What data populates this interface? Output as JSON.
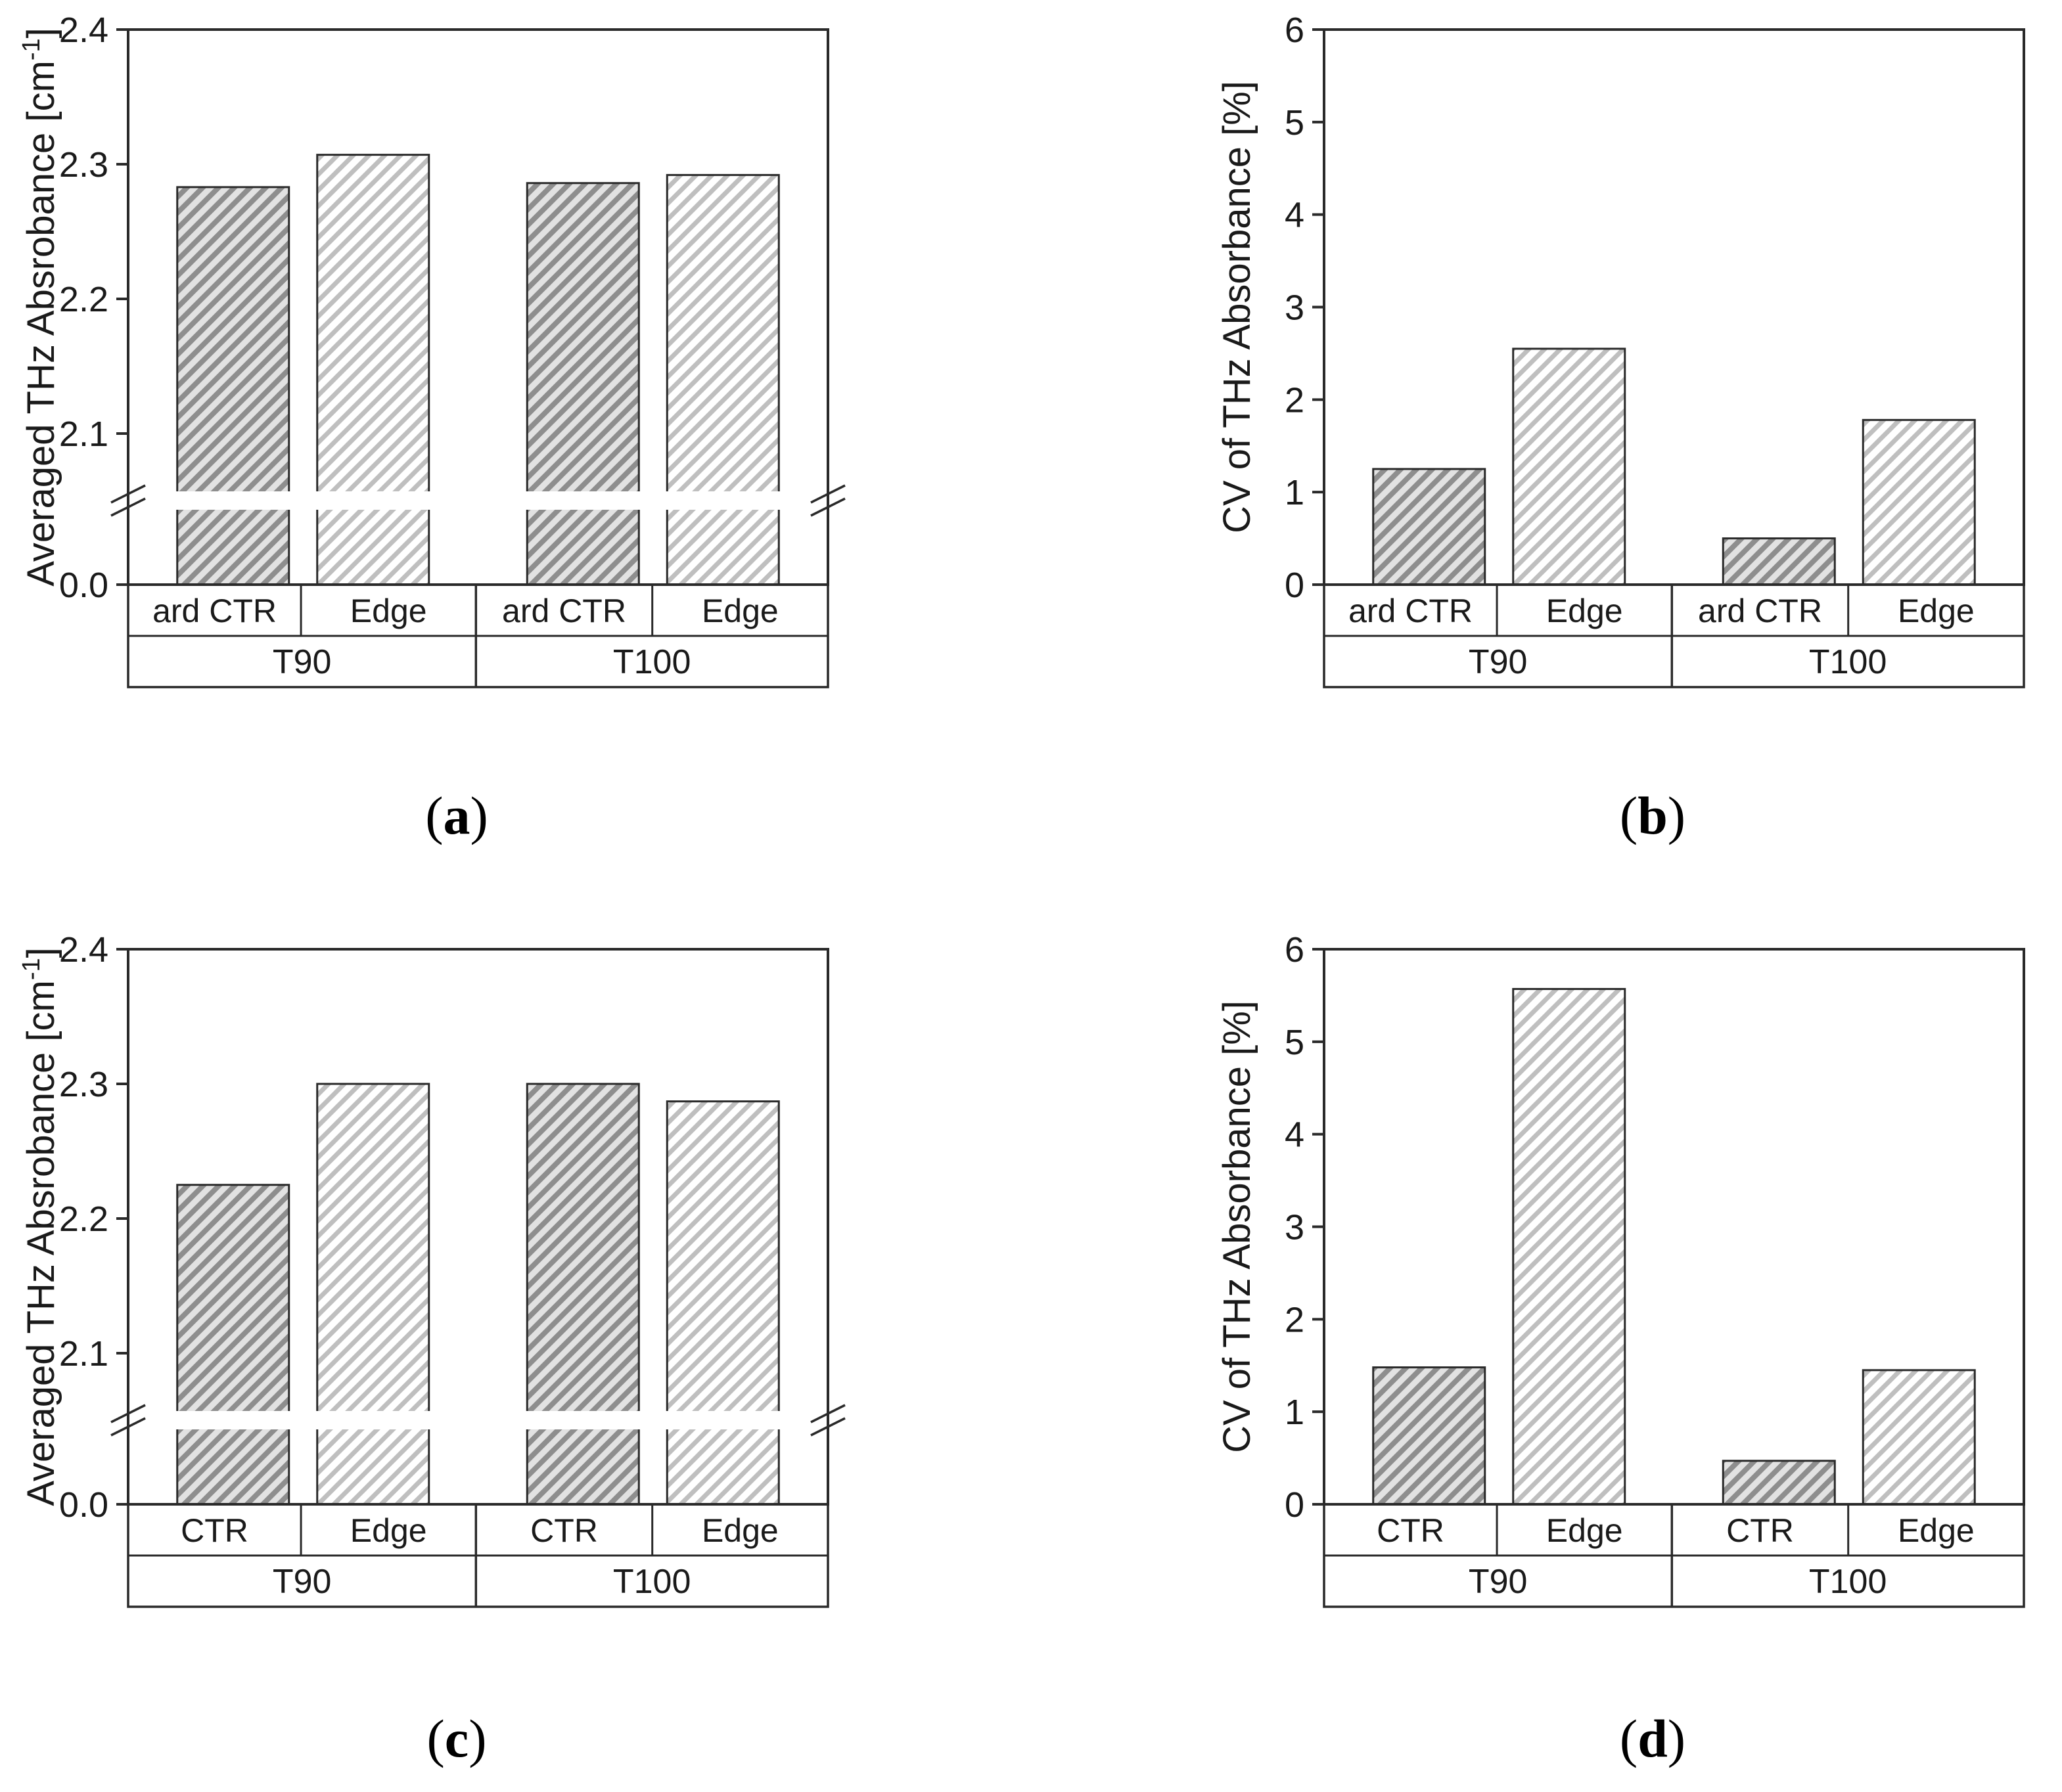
{
  "page": {
    "background": "#ffffff"
  },
  "captions": {
    "a": {
      "open": "(",
      "letter": "a",
      "close": ")"
    },
    "b": {
      "open": "(",
      "letter": "b",
      "close": ")"
    },
    "c": {
      "open": "(",
      "letter": "c",
      "close": ")"
    },
    "d": {
      "open": "(",
      "letter": "d",
      "close": ")"
    }
  },
  "palette": {
    "dark_base": "#8e8e8e",
    "dark_stripe": "#e2e2e2",
    "light_base": "#ffffff",
    "light_stripe": "#bfbfbf",
    "line": "#2a2a2a",
    "text": "#1a1a1a"
  },
  "chart_data": [
    {
      "id": "a",
      "type": "bar",
      "broken_axis": true,
      "ylabel": "Averaged THz Absrobance [cm⁻¹]",
      "ylabel_parts": {
        "pre": "Averaged THz Absrobance [cm",
        "sup": "-1",
        "post": "]"
      },
      "upper_ticks": [
        {
          "v": 2.4,
          "label": "2.4"
        },
        {
          "v": 2.3,
          "label": "2.3"
        },
        {
          "v": 2.2,
          "label": "2.2"
        },
        {
          "v": 2.1,
          "label": "2.1"
        }
      ],
      "zero_label": "0.0",
      "upper_range": [
        2.05,
        2.4
      ],
      "groups": [
        "T90",
        "T100"
      ],
      "categories": [
        "ard CTR",
        "Edge",
        "ard CTR",
        "Edge"
      ],
      "group_index": [
        0,
        0,
        1,
        1
      ],
      "values": [
        2.283,
        2.307,
        2.286,
        2.292
      ],
      "styles": [
        "dark",
        "light",
        "dark",
        "light"
      ]
    },
    {
      "id": "b",
      "type": "bar",
      "broken_axis": false,
      "ylabel": "CV of THz Absorbance [%]",
      "ylim": [
        0,
        6
      ],
      "yticks": [
        {
          "v": 0,
          "label": "0"
        },
        {
          "v": 1,
          "label": "1"
        },
        {
          "v": 2,
          "label": "2"
        },
        {
          "v": 3,
          "label": "3"
        },
        {
          "v": 4,
          "label": "4"
        },
        {
          "v": 5,
          "label": "5"
        },
        {
          "v": 6,
          "label": "6"
        }
      ],
      "groups": [
        "T90",
        "T100"
      ],
      "categories": [
        "ard CTR",
        "Edge",
        "ard CTR",
        "Edge"
      ],
      "group_index": [
        0,
        0,
        1,
        1
      ],
      "values": [
        1.25,
        2.55,
        0.5,
        1.78
      ],
      "styles": [
        "dark",
        "light",
        "dark",
        "light"
      ]
    },
    {
      "id": "c",
      "type": "bar",
      "broken_axis": true,
      "ylabel": "Averaged THz Absrobance [cm⁻¹]",
      "ylabel_parts": {
        "pre": "Averaged THz Absrobance [cm",
        "sup": "-1",
        "post": "]"
      },
      "upper_ticks": [
        {
          "v": 2.4,
          "label": "2.4"
        },
        {
          "v": 2.3,
          "label": "2.3"
        },
        {
          "v": 2.2,
          "label": "2.2"
        },
        {
          "v": 2.1,
          "label": "2.1"
        }
      ],
      "zero_label": "0.0",
      "upper_range": [
        2.05,
        2.4
      ],
      "groups": [
        "T90",
        "T100"
      ],
      "categories": [
        "CTR",
        "Edge",
        "CTR",
        "Edge"
      ],
      "group_index": [
        0,
        0,
        1,
        1
      ],
      "values": [
        2.225,
        2.3,
        2.3,
        2.287
      ],
      "styles": [
        "dark",
        "light",
        "dark",
        "light"
      ]
    },
    {
      "id": "d",
      "type": "bar",
      "broken_axis": false,
      "ylabel": "CV of THz Absorbance [%]",
      "ylim": [
        0,
        6
      ],
      "yticks": [
        {
          "v": 0,
          "label": "0"
        },
        {
          "v": 1,
          "label": "1"
        },
        {
          "v": 2,
          "label": "2"
        },
        {
          "v": 3,
          "label": "3"
        },
        {
          "v": 4,
          "label": "4"
        },
        {
          "v": 5,
          "label": "5"
        },
        {
          "v": 6,
          "label": "6"
        }
      ],
      "groups": [
        "T90",
        "T100"
      ],
      "categories": [
        "CTR",
        "Edge",
        "CTR",
        "Edge"
      ],
      "group_index": [
        0,
        0,
        1,
        1
      ],
      "values": [
        1.48,
        5.57,
        0.47,
        1.45
      ],
      "styles": [
        "dark",
        "light",
        "dark",
        "light"
      ]
    }
  ]
}
